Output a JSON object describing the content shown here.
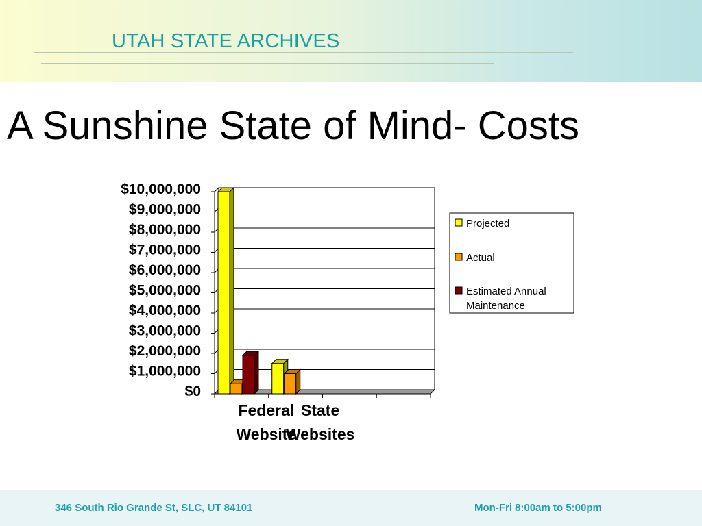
{
  "header": {
    "title": "UTAH STATE ARCHIVES"
  },
  "slide": {
    "title": "A Sunshine State of Mind- Costs"
  },
  "footer": {
    "address": "346 South Rio Grande St, SLC, UT 84101",
    "hours": "Mon-Fri 8:00am to 5:00pm"
  },
  "colors": {
    "header_text": "#17a2a4",
    "footer_text": "#21a1a7",
    "projected": "#ffff00",
    "actual": "#ff9900",
    "maintenance": "#800000"
  },
  "chart_data": {
    "type": "bar",
    "title": "",
    "xlabel": "",
    "ylabel": "",
    "categories": [
      "Federal Website",
      "State Websites"
    ],
    "category_label_lines": [
      [
        "Federal",
        "Website"
      ],
      [
        "State",
        "Websites"
      ]
    ],
    "series": [
      {
        "name": "Projected",
        "values": [
          10000000,
          1500000
        ],
        "color": "#ffff00"
      },
      {
        "name": "Actual",
        "values": [
          500000,
          1000000
        ],
        "color": "#ff9900"
      },
      {
        "name": "Estimated Annual Maintenance",
        "legend_lines": [
          "Estimated Annual",
          "Maintenance"
        ],
        "values": [
          1900000,
          0
        ],
        "color": "#800000"
      }
    ],
    "ylim": [
      0,
      10000000
    ],
    "y_ticks": [
      "$0",
      "$1,000,000",
      "$2,000,000",
      "$3,000,000",
      "$4,000,000",
      "$5,000,000",
      "$6,000,000",
      "$7,000,000",
      "$8,000,000",
      "$9,000,000",
      "$10,000,000"
    ],
    "grid": true,
    "legend_position": "right"
  }
}
